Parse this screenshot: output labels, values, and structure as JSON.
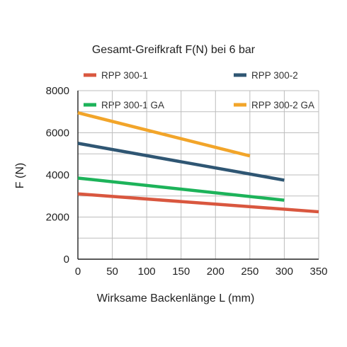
{
  "chart_data": {
    "type": "line",
    "title": "Gesamt-Greifkraft F(N) bei 6 bar",
    "xlabel": "Wirksame Backenlänge L (mm)",
    "ylabel": "F (N)",
    "xlim": [
      0,
      350
    ],
    "ylim": [
      0,
      8000
    ],
    "x_ticks": [
      0,
      50,
      100,
      150,
      200,
      250,
      300,
      350
    ],
    "y_ticks": [
      0,
      2000,
      4000,
      6000,
      8000
    ],
    "grid": true,
    "legend_position": "top",
    "series": [
      {
        "name": "RPP 300-1",
        "color": "#d9573f",
        "x": [
          0,
          350
        ],
        "y": [
          3100,
          2250
        ]
      },
      {
        "name": "RPP 300-2",
        "color": "#2f5673",
        "x": [
          0,
          300
        ],
        "y": [
          5500,
          3750
        ]
      },
      {
        "name": "RPP 300-1 GA",
        "color": "#1db35a",
        "x": [
          0,
          300
        ],
        "y": [
          3850,
          2800
        ]
      },
      {
        "name": "RPP 300-2 GA",
        "color": "#f2a52a",
        "x": [
          0,
          250
        ],
        "y": [
          6950,
          4900
        ]
      }
    ]
  }
}
